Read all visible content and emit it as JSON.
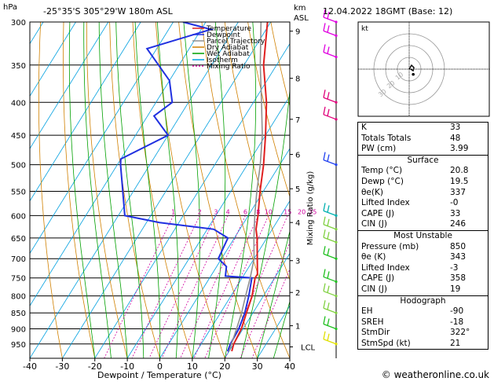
{
  "header": {
    "hpa_label": "hPa",
    "location": "-25°35'S  305°29'W  180m  ASL",
    "km_label": "km",
    "asl_label": "ASL",
    "datetime": "12.04.2022  18GMT  (Base: 12)"
  },
  "legend": [
    {
      "label": "Temperature",
      "color": "#e02020",
      "dash": "none"
    },
    {
      "label": "Dewpoint",
      "color": "#2030e0",
      "dash": "none"
    },
    {
      "label": "Parcel Trajectory",
      "color": "#909090",
      "dash": "none"
    },
    {
      "label": "Dry Adiabat",
      "color": "#d08000",
      "dash": "none"
    },
    {
      "label": "Wet Adiabat",
      "color": "#00a000",
      "dash": "none"
    },
    {
      "label": "Isotherm",
      "color": "#00a0e0",
      "dash": "none"
    },
    {
      "label": "Mixing Ratio",
      "color": "#d000a0",
      "dash": "2,2"
    }
  ],
  "chart_data": {
    "type": "line",
    "title": "",
    "xlabel": "Dewpoint / Temperature (°C)",
    "ylabel": "hPa",
    "right_label": "Mixing Ratio (g/kg)",
    "x_ticks": [
      "-40",
      "-30",
      "-20",
      "-10",
      "0",
      "10",
      "20",
      "30",
      "40"
    ],
    "xlim": [
      -40,
      40
    ],
    "pressure_levels": [
      "300",
      "350",
      "400",
      "450",
      "500",
      "550",
      "600",
      "650",
      "700",
      "750",
      "800",
      "850",
      "900",
      "950"
    ],
    "ylim": [
      1000,
      300
    ],
    "skew": "skew-T log-p",
    "km_levels": [
      {
        "label": "9",
        "p": 310
      },
      {
        "label": "8",
        "p": 367
      },
      {
        "label": "7",
        "p": 425
      },
      {
        "label": "6",
        "p": 482
      },
      {
        "label": "5",
        "p": 545
      },
      {
        "label": "4",
        "p": 615
      },
      {
        "label": "3",
        "p": 705
      },
      {
        "label": "2",
        "p": 790
      },
      {
        "label": "1",
        "p": 890
      },
      {
        "label": "LCL",
        "p": 960
      }
    ],
    "mixing_ratio_labels": [
      "1",
      "2",
      "3",
      "4",
      "6",
      "8",
      "10",
      "15",
      "20",
      "25"
    ],
    "mixing_ratios": [
      1,
      2,
      3,
      4,
      6,
      8,
      10,
      15,
      20,
      25
    ],
    "series": [
      {
        "name": "Temperature",
        "color": "#e02020",
        "points": [
          [
            300,
            -31
          ],
          [
            350,
            -24
          ],
          [
            400,
            -16
          ],
          [
            450,
            -10
          ],
          [
            500,
            -5
          ],
          [
            550,
            -1
          ],
          [
            600,
            3
          ],
          [
            630,
            5
          ],
          [
            650,
            7
          ],
          [
            700,
            11
          ],
          [
            740,
            14
          ],
          [
            750,
            14
          ],
          [
            800,
            16.5
          ],
          [
            850,
            18
          ],
          [
            900,
            19.5
          ],
          [
            950,
            20
          ],
          [
            975,
            20.8
          ]
        ]
      },
      {
        "name": "Dewpoint",
        "color": "#2030e0",
        "points": [
          [
            300,
            -57
          ],
          [
            308,
            -47
          ],
          [
            330,
            -63
          ],
          [
            370,
            -50
          ],
          [
            400,
            -45
          ],
          [
            420,
            -48
          ],
          [
            450,
            -40
          ],
          [
            490,
            -50
          ],
          [
            500,
            -49
          ],
          [
            600,
            -38
          ],
          [
            615,
            -26
          ],
          [
            630,
            -8
          ],
          [
            650,
            -2
          ],
          [
            700,
            -1
          ],
          [
            720,
            3
          ],
          [
            745,
            4.5
          ],
          [
            750,
            13
          ],
          [
            800,
            15.5
          ],
          [
            850,
            17.5
          ],
          [
            900,
            18.7
          ],
          [
            950,
            19
          ],
          [
            975,
            19.5
          ]
        ]
      },
      {
        "name": "Parcel Trajectory",
        "color": "#909090",
        "points": [
          [
            300,
            -33
          ],
          [
            350,
            -25
          ],
          [
            400,
            -17.5
          ],
          [
            450,
            -11
          ],
          [
            500,
            -6
          ],
          [
            550,
            -2
          ],
          [
            600,
            2
          ],
          [
            650,
            6
          ],
          [
            700,
            10
          ],
          [
            750,
            12.5
          ],
          [
            800,
            14.5
          ],
          [
            850,
            16.5
          ],
          [
            900,
            18
          ],
          [
            950,
            19.3
          ],
          [
            975,
            20
          ]
        ]
      }
    ],
    "wind_barbs": [
      {
        "p": 300,
        "color": "#e000e0"
      },
      {
        "p": 315,
        "color": "#e000e0"
      },
      {
        "p": 340,
        "color": "#e000e0"
      },
      {
        "p": 400,
        "color": "#e0007a"
      },
      {
        "p": 425,
        "color": "#e0007a"
      },
      {
        "p": 500,
        "color": "#2040f0"
      },
      {
        "p": 600,
        "color": "#00b0b0"
      },
      {
        "p": 630,
        "color": "#80d040"
      },
      {
        "p": 660,
        "color": "#80d040"
      },
      {
        "p": 700,
        "color": "#20c020"
      },
      {
        "p": 760,
        "color": "#20c020"
      },
      {
        "p": 800,
        "color": "#80d040"
      },
      {
        "p": 850,
        "color": "#80d040"
      },
      {
        "p": 900,
        "color": "#20c020"
      },
      {
        "p": 950,
        "color": "#e0e000"
      }
    ]
  },
  "hodograph": {
    "unit_label": "kt",
    "ring_labels": [
      "10",
      "20",
      "30"
    ],
    "trace_points": [
      [
        0,
        0
      ],
      [
        3,
        -5
      ],
      [
        6,
        -2
      ],
      [
        5,
        2
      ],
      [
        2,
        0
      ]
    ],
    "storm_motion": {
      "dir": 322,
      "speed": 21
    }
  },
  "stats": {
    "general": [
      {
        "label": "K",
        "value": "33"
      },
      {
        "label": "Totals Totals",
        "value": "48"
      },
      {
        "label": "PW (cm)",
        "value": "3.99"
      }
    ],
    "surface": {
      "title": "Surface",
      "rows": [
        {
          "label": "Temp (°C)",
          "value": "20.8"
        },
        {
          "label": "Dewp (°C)",
          "value": "19.5"
        },
        {
          "label": "θe(K)",
          "value": "337"
        },
        {
          "label": "Lifted Index",
          "value": "-0"
        },
        {
          "label": "CAPE (J)",
          "value": "33"
        },
        {
          "label": "CIN (J)",
          "value": "246"
        }
      ]
    },
    "unstable": {
      "title": "Most Unstable",
      "rows": [
        {
          "label": "Pressure (mb)",
          "value": "850"
        },
        {
          "label": "θe (K)",
          "value": "343"
        },
        {
          "label": "Lifted Index",
          "value": "-3"
        },
        {
          "label": "CAPE (J)",
          "value": "358"
        },
        {
          "label": "CIN (J)",
          "value": "19"
        }
      ]
    },
    "hodo": {
      "title": "Hodograph",
      "rows": [
        {
          "label": "EH",
          "value": "-90"
        },
        {
          "label": "SREH",
          "value": "-18"
        },
        {
          "label": "StmDir",
          "value": "322°"
        },
        {
          "label": "StmSpd (kt)",
          "value": "21"
        }
      ]
    }
  },
  "credit": "© weatheronline.co.uk"
}
